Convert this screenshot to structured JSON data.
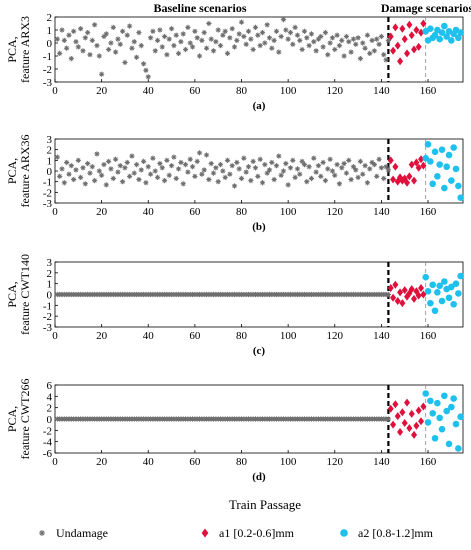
{
  "figure": {
    "header_left": "Baseline scenarios",
    "header_right": "Damage scenarios",
    "xlabel": "Train Passage",
    "legend": [
      {
        "label": "Undamage",
        "marker": "asterisk",
        "color": "#6e6e6e"
      },
      {
        "label": "a1 [0.2-0.6]mm",
        "marker": "diamond",
        "color": "#e0103c"
      },
      {
        "label": "a2 [0.8-1.2]mm",
        "marker": "circle",
        "color": "#1ec0ee"
      }
    ],
    "colors": {
      "undamage": "#6e6e6e",
      "a1": "#e0103c",
      "a2": "#1ec0ee",
      "threshold": "#000000",
      "second_divider": "#8a8a8a"
    }
  },
  "chart_data": [
    {
      "type": "scatter",
      "panel": "(a)",
      "ylabel": [
        "PCA,",
        "feature ARX3"
      ],
      "xlim": [
        0,
        175
      ],
      "ylim": [
        -3,
        2
      ],
      "xticks": [
        0,
        20,
        40,
        60,
        80,
        100,
        120,
        140,
        160
      ],
      "yticks": [
        2,
        1,
        0,
        -1,
        -2,
        -3
      ],
      "damage_start": 143,
      "second_divider": 159,
      "amp": 1.2,
      "a1_amp": 1.3,
      "a2_amp": 0.6,
      "a1_offset": 0,
      "a2_offset": 0.5,
      "series": [
        {
          "name": "Undamage",
          "x_range": [
            1,
            143
          ],
          "values": [
            0.3,
            -0.8,
            1.0,
            0.2,
            -0.4,
            0.6,
            -1.2,
            0.9,
            0.1,
            -0.3,
            1.1,
            -0.6,
            0.4,
            0.8,
            -0.9,
            0.2,
            1.4,
            -0.2,
            -1.0,
            -2.4,
            0.5,
            0.7,
            -0.5,
            0.0,
            1.2,
            -0.7,
            0.3,
            -0.1,
            0.9,
            -1.5,
            0.6,
            1.3,
            -0.4,
            0.1,
            -1.1,
            0.8,
            -0.2,
            -1.6,
            -2.1,
            -2.6,
            0.4,
            0.9,
            -0.6,
            0.2,
            1.0,
            -0.3,
            0.5,
            -0.9,
            0.3,
            1.1,
            -0.2,
            0.6,
            -0.8,
            0.1,
            0.7,
            -0.5,
            1.2,
            0.0,
            -0.3,
            0.9,
            0.4,
            -1.0,
            0.2,
            0.8,
            -0.4,
            1.5,
            0.3,
            -0.6,
            0.1,
            1.0,
            -0.2,
            0.6,
            0.9,
            -0.8,
            0.4,
            1.1,
            -0.3,
            0.2,
            0.7,
            1.6,
            0.5,
            -0.1,
            0.9,
            0.3,
            -0.5,
            1.2,
            0.6,
            -0.2,
            0.8,
            0.0,
            1.4,
            0.4,
            -0.4,
            0.2,
            0.9,
            -0.7,
            0.5,
            1.8,
            1.0,
            0.3,
            0.8,
            -0.1,
            1.2,
            0.6,
            0.2,
            -0.5,
            0.9,
            0.4,
            -0.2,
            0.7,
            0.1,
            -0.6,
            0.3,
            0.5,
            -0.3,
            0.8,
            -0.9,
            0.0,
            0.4,
            -0.5,
            0.6,
            -0.2,
            0.2,
            -1.0,
            0.5,
            0.1,
            -0.7,
            0.3,
            -0.1,
            0.4,
            -1.2,
            0.0,
            -0.4,
            0.6,
            -0.8,
            0.2,
            -0.6,
            0.3,
            -0.1,
            0.5,
            -0.9,
            -1.3,
            0.2
          ]
        },
        {
          "name": "a1 [0.2-0.6]mm",
          "x_range": [
            144,
            158
          ],
          "values": [
            0.5,
            -0.6,
            1.2,
            -0.2,
            -1.4,
            1.1,
            0.3,
            -0.8,
            1.4,
            0.6,
            -0.5,
            1.0,
            -0.3,
            0.8,
            1.5
          ]
        },
        {
          "name": "a2 [0.8-1.2]mm",
          "x_range": [
            159,
            174
          ],
          "values": [
            0.9,
            0.2,
            1.1,
            0.4,
            0.6,
            1.0,
            0.3,
            0.8,
            1.3,
            0.5,
            0.9,
            0.2,
            0.7,
            1.0,
            0.4,
            0.8
          ]
        }
      ]
    },
    {
      "type": "scatter",
      "panel": "(b)",
      "ylabel": [
        "PCA,",
        "feature ARX36"
      ],
      "xlim": [
        0,
        175
      ],
      "ylim": [
        -3,
        3
      ],
      "xticks": [
        0,
        20,
        40,
        60,
        80,
        100,
        120,
        140,
        160
      ],
      "yticks": [
        3,
        2,
        1,
        0,
        -1,
        -2,
        -3
      ],
      "damage_start": 143,
      "second_divider": 159,
      "amp": 1.1,
      "a1_amp": 1.0,
      "a2_amp": 2.6,
      "a1_offset": -0.2,
      "a2_offset": 0,
      "series": [
        {
          "name": "Undamage",
          "x_range": [
            1,
            143
          ],
          "values": [
            1.3,
            -0.5,
            0.2,
            -1.1,
            0.8,
            -0.3,
            0.5,
            -0.8,
            0.1,
            1.0,
            -0.6,
            0.3,
            -1.2,
            0.7,
            -0.2,
            0.4,
            -0.9,
            1.6,
            0.0,
            -0.4,
            0.6,
            -1.3,
            0.9,
            0.2,
            -0.7,
            1.1,
            -0.1,
            0.5,
            -1.0,
            0.3,
            0.8,
            -0.5,
            1.4,
            -0.2,
            0.6,
            -0.8,
            0.1,
            0.9,
            -1.1,
            0.4,
            -0.3,
            1.2,
            0.0,
            -0.6,
            0.7,
            0.3,
            -0.9,
            1.0,
            -0.4,
            0.5,
            1.3,
            -0.7,
            0.2,
            0.8,
            -1.2,
            0.6,
            -0.1,
            1.1,
            0.4,
            -0.5,
            0.9,
            1.7,
            -0.3,
            0.1,
            1.5,
            -0.8,
            0.7,
            -0.2,
            0.3,
            -1.0,
            0.6,
            0.0,
            -0.6,
            1.0,
            -0.3,
            0.5,
            -1.4,
            0.8,
            0.2,
            -0.7,
            1.2,
            -0.1,
            0.4,
            -0.9,
            0.9,
            0.3,
            -0.5,
            1.1,
            -1.1,
            0.6,
            -0.2,
            0.1,
            0.8,
            -0.8,
            0.5,
            1.4,
            -0.4,
            0.0,
            0.7,
            -1.3,
            0.3,
            1.0,
            -0.6,
            0.2,
            -0.3,
            0.9,
            0.6,
            -1.0,
            0.4,
            -0.7,
            1.2,
            -0.1,
            0.5,
            -0.5,
            0.8,
            -0.9,
            0.2,
            1.1,
            0.0,
            -0.4,
            0.6,
            -1.2,
            0.3,
            0.7,
            -0.2,
            1.0,
            -0.8,
            0.4,
            0.1,
            -0.6,
            0.9,
            -0.3,
            0.5,
            -1.1,
            0.2,
            0.8,
            0.6,
            -0.5,
            1.1,
            0.3,
            -0.7,
            0.4,
            0.1
          ]
        },
        {
          "name": "a1 [0.2-0.6]mm",
          "x_range": [
            144,
            158
          ],
          "values": [
            1.0,
            -0.8,
            0.4,
            -1.0,
            -0.6,
            -0.9,
            -0.7,
            -1.1,
            -0.5,
            0.6,
            -0.9,
            0.8,
            0.3,
            1.1,
            0.5
          ]
        },
        {
          "name": "a2 [0.8-1.2]mm",
          "x_range": [
            159,
            174
          ],
          "values": [
            1.2,
            2.5,
            0.9,
            -1.2,
            1.8,
            -0.5,
            0.6,
            2.0,
            -1.6,
            0.4,
            1.5,
            -0.9,
            2.2,
            0.2,
            -1.4,
            -2.5
          ]
        }
      ]
    },
    {
      "type": "scatter",
      "panel": "(c)",
      "ylabel": [
        "PCA,",
        "feature CWT140"
      ],
      "xlim": [
        0,
        175
      ],
      "ylim": [
        -3,
        3
      ],
      "xticks": [
        0,
        20,
        40,
        60,
        80,
        100,
        120,
        140,
        160
      ],
      "yticks": [
        3,
        2,
        1,
        0,
        -1,
        -2,
        -3
      ],
      "damage_start": 143,
      "second_divider": 159,
      "amp": 0.05,
      "a1_amp": 0.9,
      "a2_amp": 1.6,
      "a1_offset": 0,
      "a2_offset": 0,
      "series": [
        {
          "name": "Undamage",
          "x_range": [
            1,
            143
          ],
          "values": [
            0.0
          ]
        },
        {
          "name": "a1 [0.2-0.6]mm",
          "x_range": [
            144,
            158
          ],
          "values": [
            0.6,
            -0.3,
            0.9,
            -0.6,
            0.2,
            -0.8,
            0.4,
            -0.2,
            0.1,
            0.5,
            -0.4,
            0.3,
            -0.1,
            0.6,
            0.0
          ]
        },
        {
          "name": "a2 [0.8-1.2]mm",
          "x_range": [
            159,
            174
          ],
          "values": [
            1.6,
            0.3,
            -0.8,
            0.9,
            -1.5,
            0.2,
            0.8,
            -0.6,
            1.2,
            0.5,
            -0.3,
            0.7,
            -0.9,
            1.0,
            0.1,
            1.7
          ]
        }
      ]
    },
    {
      "type": "scatter",
      "panel": "(d)",
      "ylabel": [
        "PCA,",
        "feature CWT266"
      ],
      "xlim": [
        0,
        175
      ],
      "ylim": [
        -6,
        6
      ],
      "xticks": [
        0,
        20,
        40,
        60,
        80,
        100,
        120,
        140,
        160
      ],
      "yticks": [
        6,
        4,
        2,
        0,
        -2,
        -4,
        -6
      ],
      "damage_start": 143,
      "second_divider": 159,
      "amp": 0.05,
      "a1_amp": 2.8,
      "a2_amp": 4.5,
      "a1_offset": 0,
      "a2_offset": 0,
      "series": [
        {
          "name": "Undamage",
          "x_range": [
            1,
            143
          ],
          "values": [
            0.0
          ]
        },
        {
          "name": "a1 [0.2-0.6]mm",
          "x_range": [
            144,
            158
          ],
          "values": [
            1.8,
            -1.0,
            2.6,
            0.5,
            -2.3,
            1.2,
            -0.7,
            2.9,
            -1.6,
            0.9,
            -2.8,
            -1.2,
            1.5,
            -0.4,
            2.2
          ]
        },
        {
          "name": "a2 [0.8-1.2]mm",
          "x_range": [
            159,
            174
          ],
          "values": [
            4.5,
            -0.6,
            3.2,
            1.0,
            -3.4,
            2.8,
            0.2,
            -1.8,
            4.1,
            1.4,
            -4.4,
            2.1,
            3.6,
            -0.9,
            -5.2,
            0.4
          ]
        }
      ]
    }
  ]
}
